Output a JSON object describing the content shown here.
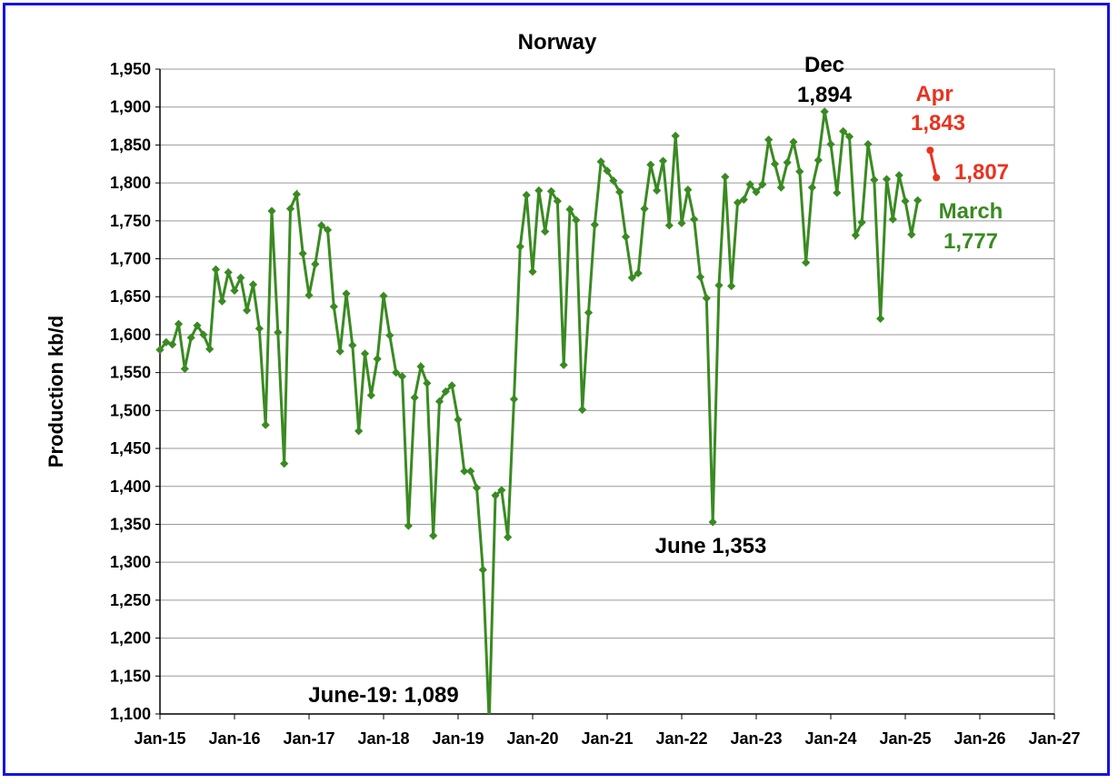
{
  "chart_data": {
    "type": "line",
    "title": "Norway",
    "xlabel": "",
    "ylabel": "Production kb/d",
    "ylim": [
      1100,
      1950
    ],
    "ytick_step": 50,
    "y_ticks": [
      "1,100",
      "1,150",
      "1,200",
      "1,250",
      "1,300",
      "1,350",
      "1,400",
      "1,450",
      "1,500",
      "1,550",
      "1,600",
      "1,650",
      "1,700",
      "1,750",
      "1,800",
      "1,850",
      "1,900",
      "1,950"
    ],
    "x_ticks": [
      "Jan-15",
      "Jan-16",
      "Jan-17",
      "Jan-18",
      "Jan-19",
      "Jan-20",
      "Jan-21",
      "Jan-22",
      "Jan-23",
      "Jan-24",
      "Jan-25",
      "Jan-26",
      "Jan-27"
    ],
    "x_start": "Jan-15",
    "grid": true,
    "legend": "none",
    "series": [
      {
        "color": "#3a8a22",
        "marker": "diamond",
        "values": [
          1580,
          1590,
          1587,
          1614,
          1555,
          1596,
          1612,
          1600,
          1581,
          1686,
          1644,
          1682,
          1658,
          1675,
          1632,
          1666,
          1608,
          1481,
          1763,
          1603,
          1430,
          1766,
          1785,
          1707,
          1652,
          1693,
          1744,
          1738,
          1637,
          1578,
          1654,
          1586,
          1473,
          1575,
          1520,
          1568,
          1651,
          1599,
          1550,
          1545,
          1348,
          1517,
          1558,
          1536,
          1335,
          1512,
          1525,
          1533,
          1488,
          1420,
          1420,
          1398,
          1290,
          1089,
          1388,
          1395,
          1333,
          1515,
          1716,
          1784,
          1683,
          1790,
          1736,
          1789,
          1776,
          1560,
          1765,
          1751,
          1501,
          1629,
          1745,
          1828,
          1816,
          1803,
          1788,
          1729,
          1675,
          1681,
          1766,
          1824,
          1790,
          1829,
          1744,
          1862,
          1747,
          1791,
          1752,
          1676,
          1648,
          1353,
          1665,
          1808,
          1664,
          1774,
          1778,
          1798,
          1788,
          1798,
          1857,
          1825,
          1794,
          1827,
          1854,
          1815,
          1695,
          1794,
          1830,
          1894,
          1851,
          1787,
          1868,
          1861,
          1731,
          1748,
          1851,
          1804,
          1621,
          1805,
          1752,
          1810,
          1776,
          1732,
          1777
        ]
      },
      {
        "color": "#e8331f",
        "marker": "circle",
        "start_index": 124,
        "values": [
          1843,
          1807
        ]
      }
    ],
    "annotations": [
      {
        "id": "dec",
        "lines": [
          "Dec",
          "1,894"
        ],
        "color": "#000000"
      },
      {
        "id": "apr",
        "lines": [
          "Apr",
          "1,843"
        ],
        "color": "#e8331f"
      },
      {
        "id": "may",
        "lines": [
          "1,807"
        ],
        "color": "#e8331f"
      },
      {
        "id": "march",
        "lines": [
          "March",
          "1,777"
        ],
        "color": "#3a8a22"
      },
      {
        "id": "june22",
        "lines": [
          "June 1,353"
        ],
        "color": "#000000"
      },
      {
        "id": "june19",
        "lines": [
          "June-19: 1,089"
        ],
        "color": "#000000"
      }
    ]
  }
}
